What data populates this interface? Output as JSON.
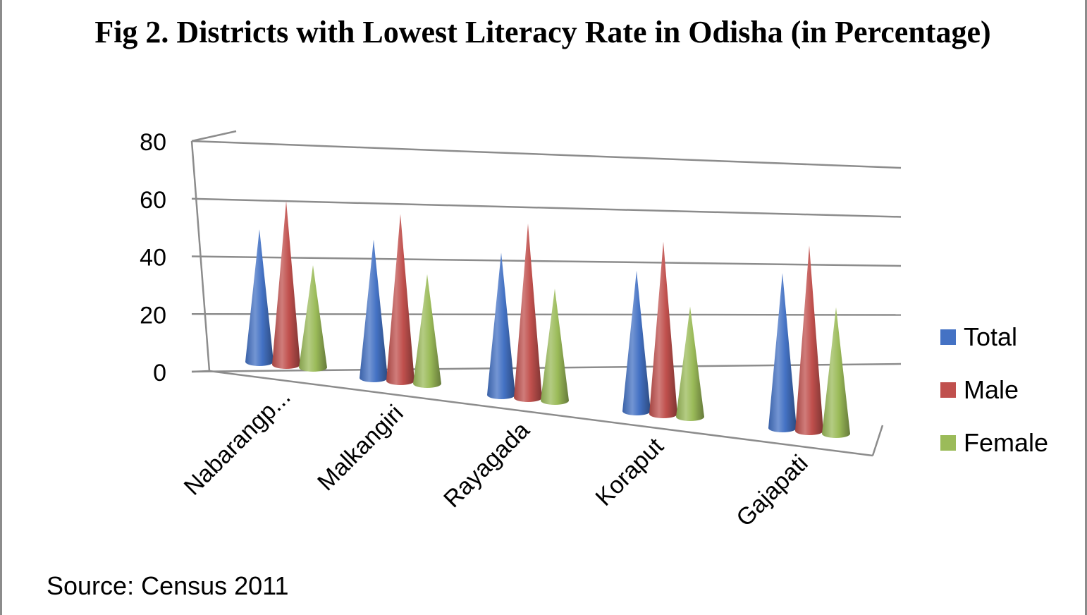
{
  "chart_data": {
    "type": "bar",
    "title": "Fig 2. Districts with Lowest Literacy Rate in Odisha (in Percentage)",
    "xlabel": "",
    "ylabel": "",
    "ylim": [
      0,
      80
    ],
    "yticks": [
      "0",
      "20",
      "40",
      "60",
      "80"
    ],
    "categories": [
      "Nabarangp...",
      "Malkangiri",
      "Rayagada",
      "Koraput",
      "Gajapati"
    ],
    "series": [
      {
        "name": "Total",
        "color": "#4472c4",
        "values": [
          46.4,
          48.5,
          49.8,
          49.2,
          54.3
        ]
      },
      {
        "name": "Male",
        "color": "#c0504d",
        "values": [
          57.3,
          58.4,
          61.0,
          60.3,
          64.9
        ]
      },
      {
        "name": "Female",
        "color": "#9bbb59",
        "values": [
          35.8,
          38.3,
          39.2,
          38.6,
          44.3
        ]
      }
    ],
    "legend": "right",
    "grid": true
  },
  "source": "Source: Census 2011"
}
